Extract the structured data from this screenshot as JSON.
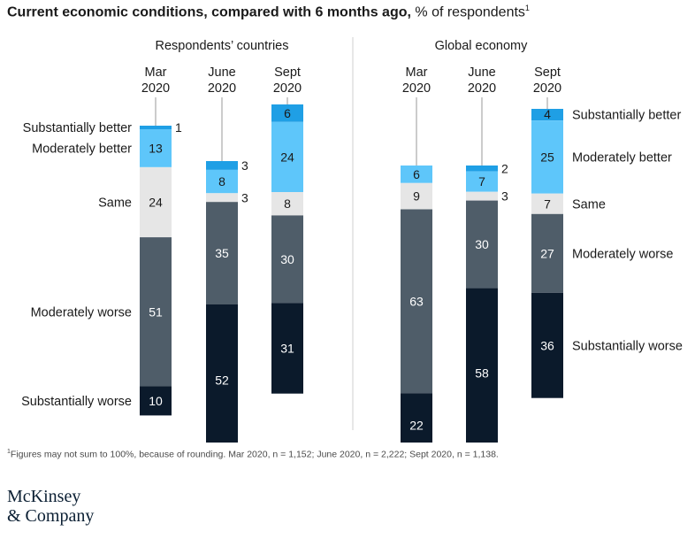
{
  "title": {
    "bold": "Current economic conditions, compared with 6 months ago,",
    "light": "% of respondents",
    "sup": "1"
  },
  "footnote": {
    "sup": "1",
    "text": "Figures may not sum to 100%, because of rounding. Mar 2020, n = 1,152; June 2020, n = 2,222; Sept 2020, n = 1,138."
  },
  "logo": {
    "line1": "McKinsey",
    "line2": "& Company"
  },
  "colors": {
    "substantially_better": "#1f9fe5",
    "moderately_better": "#5ec6fa",
    "same": "#e6e6e6",
    "moderately_worse": "#4f5d69",
    "substantially_worse": "#0b1a2b",
    "leader": "#9a9a9a",
    "divider": "#cfcfcf"
  },
  "chart_data": {
    "type": "bar",
    "stacked": true,
    "categories": [
      "Substantially better",
      "Moderately better",
      "Same",
      "Moderately worse",
      "Substantially worse"
    ],
    "panels": [
      {
        "title": "Respondents’ countries",
        "periods": [
          {
            "label1": "Mar",
            "label2": "2020",
            "values": [
              1,
              13,
              24,
              51,
              10
            ]
          },
          {
            "label1": "June",
            "label2": "2020",
            "values": [
              3,
              8,
              3,
              35,
              52
            ]
          },
          {
            "label1": "Sept",
            "label2": "2020",
            "values": [
              6,
              24,
              8,
              30,
              31
            ]
          }
        ]
      },
      {
        "title": "Global economy",
        "periods": [
          {
            "label1": "Mar",
            "label2": "2020",
            "values": [
              0,
              6,
              9,
              63,
              22
            ]
          },
          {
            "label1": "June",
            "label2": "2020",
            "values": [
              2,
              7,
              3,
              30,
              58
            ]
          },
          {
            "label1": "Sept",
            "label2": "2020",
            "values": [
              4,
              25,
              7,
              27,
              36
            ]
          }
        ]
      }
    ]
  }
}
